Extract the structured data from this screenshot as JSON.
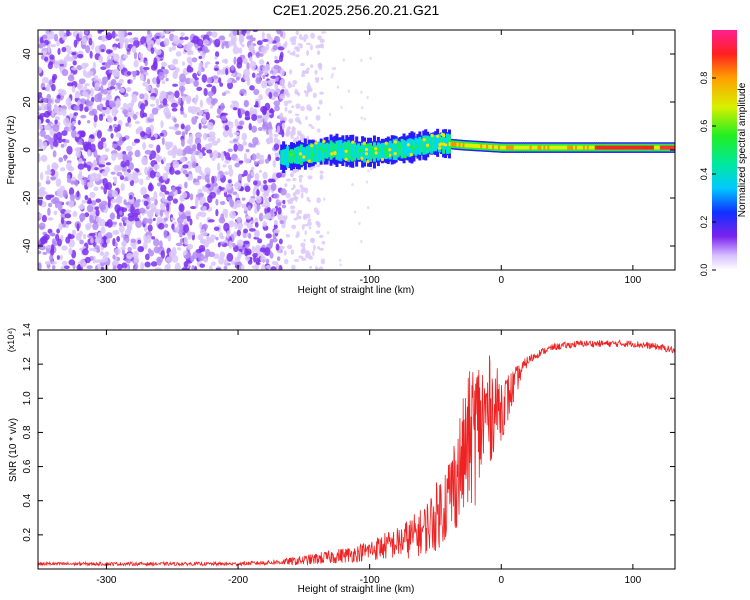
{
  "figure_title": "C2E1.2025.256.20.21.G21",
  "chart_data": [
    {
      "type": "heatmap",
      "title": "C2E1.2025.256.20.21.G21",
      "xlabel": "Height of straight line (km)",
      "ylabel": "Frequency (Hz)",
      "xlim": [
        -352,
        132
      ],
      "ylim": [
        -50,
        50
      ],
      "x_ticks": [
        -300,
        -200,
        -100,
        0,
        100
      ],
      "y_ticks": [
        -40,
        -20,
        0,
        20,
        40
      ],
      "colorbar": {
        "label": "Normalized spectral amplitude",
        "range": [
          0,
          1
        ],
        "ticks": [
          0.0,
          0.2,
          0.4,
          0.6,
          0.8
        ],
        "tick_labels": [
          "0.0",
          "0.2",
          "0.4",
          "0.6",
          "0.8"
        ]
      },
      "regions": [
        {
          "x_range": [
            -352,
            -165
          ],
          "frequency_range": [
            -50,
            50
          ],
          "amplitude": "0.0-0.15",
          "pattern": "scattered noise"
        },
        {
          "x_range": [
            -165,
            -135
          ],
          "frequency_range": [
            -50,
            50
          ],
          "amplitude": "0.0-0.05",
          "pattern": "sparse faint noise"
        },
        {
          "x_range": [
            -165,
            -40
          ],
          "frequency_range": [
            -6,
            6
          ],
          "amplitude": "0.2-0.5",
          "pattern": "wavering signal"
        },
        {
          "x_range": [
            -40,
            132
          ],
          "frequency_range": [
            -2,
            4
          ],
          "amplitude": "0.5-1.0",
          "pattern": "steady tone"
        }
      ],
      "signal_center_hz": [
        {
          "x": -165,
          "y": -3
        },
        {
          "x": -130,
          "y": 0
        },
        {
          "x": -100,
          "y": -1
        },
        {
          "x": -70,
          "y": 1
        },
        {
          "x": -50,
          "y": 3
        },
        {
          "x": -30,
          "y": 2
        },
        {
          "x": 0,
          "y": 1
        },
        {
          "x": 100,
          "y": 1
        },
        {
          "x": 132,
          "y": 1
        }
      ],
      "colors": {
        "noise": "#7b2ff0",
        "noise_light": "#d9c4fa"
      }
    },
    {
      "type": "line",
      "xlabel": "Height of straight line (km)",
      "ylabel": "SNR (10 * v/v)",
      "y_multiplier": "(x10⁴)",
      "xlim": [
        -352,
        132
      ],
      "ylim": [
        0,
        1.4
      ],
      "x_ticks": [
        -300,
        -200,
        -100,
        0,
        100
      ],
      "y_ticks": [
        0.2,
        0.4,
        0.6,
        0.8,
        1.0,
        1.2,
        1.4
      ],
      "series": [
        {
          "color": "#ee2222",
          "x": [
            -352,
            -300,
            -250,
            -200,
            -170,
            -150,
            -130,
            -110,
            -100,
            -90,
            -80,
            -70,
            -60,
            -50,
            -45,
            -40,
            -35,
            -30,
            -25,
            -20,
            -15,
            -10,
            -5,
            0,
            5,
            10,
            15,
            20,
            30,
            40,
            50,
            60,
            80,
            100,
            120,
            132
          ],
          "y": [
            0.03,
            0.03,
            0.03,
            0.03,
            0.04,
            0.05,
            0.07,
            0.09,
            0.11,
            0.13,
            0.15,
            0.18,
            0.22,
            0.3,
            0.36,
            0.42,
            0.52,
            0.62,
            0.74,
            0.82,
            0.86,
            0.92,
            0.95,
            0.95,
            1.0,
            1.08,
            1.16,
            1.22,
            1.27,
            1.3,
            1.31,
            1.32,
            1.32,
            1.32,
            1.3,
            1.28
          ],
          "noise_amplitude": [
            0.01,
            0.01,
            0.01,
            0.01,
            0.015,
            0.03,
            0.04,
            0.05,
            0.06,
            0.08,
            0.09,
            0.12,
            0.14,
            0.2,
            0.22,
            0.26,
            0.3,
            0.35,
            0.4,
            0.45,
            0.4,
            0.35,
            0.25,
            0.2,
            0.15,
            0.1,
            0.05,
            0.03,
            0.02,
            0.02,
            0.02,
            0.02,
            0.02,
            0.02,
            0.02,
            0.02
          ]
        }
      ]
    }
  ]
}
